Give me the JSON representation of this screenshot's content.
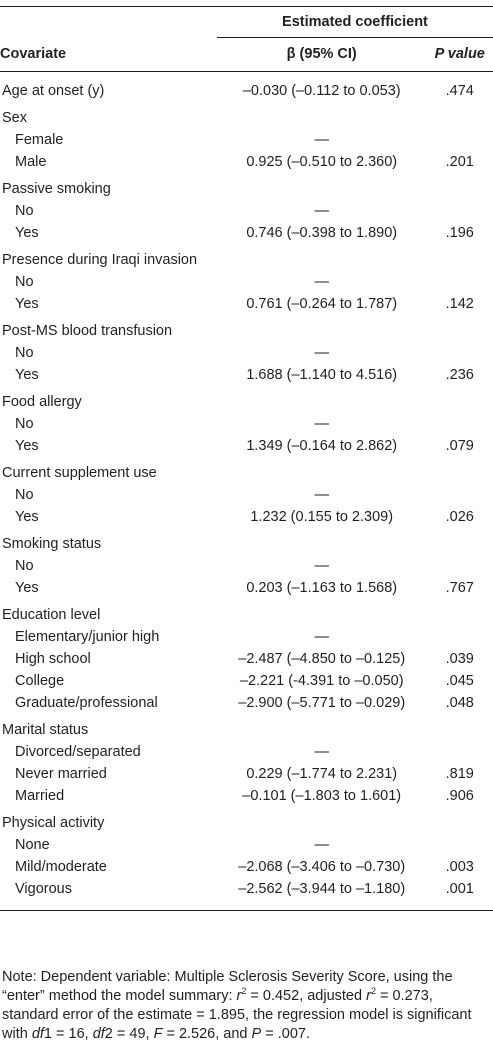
{
  "table": {
    "header": {
      "span": "Estimated coefficient",
      "columns": [
        "Covariate",
        "β (95% CI)",
        "P value"
      ]
    },
    "groups": [
      {
        "name": "Age at onset (y)",
        "ci": "–0.030 (–0.112 to 0.053)",
        "p": ".474",
        "levels": []
      },
      {
        "name": "Sex",
        "levels": [
          {
            "label": "Female",
            "ci": "—"
          },
          {
            "label": "Male",
            "ci": "0.925 (–0.510 to 2.360)",
            "p": ".201"
          }
        ]
      },
      {
        "name": "Passive smoking",
        "levels": [
          {
            "label": "No",
            "ci": "—"
          },
          {
            "label": "Yes",
            "ci": "0.746 (–0.398 to 1.890)",
            "p": ".196"
          }
        ]
      },
      {
        "name": "Presence during Iraqi invasion",
        "levels": [
          {
            "label": "No",
            "ci": "—"
          },
          {
            "label": "Yes",
            "ci": "0.761 (–0.264 to 1.787)",
            "p": ".142"
          }
        ]
      },
      {
        "name": "Post-MS blood transfusion",
        "levels": [
          {
            "label": "No",
            "ci": "—"
          },
          {
            "label": "Yes",
            "ci": "1.688 (–1.140 to 4.516)",
            "p": ".236"
          }
        ]
      },
      {
        "name": "Food allergy",
        "levels": [
          {
            "label": "No",
            "ci": "—"
          },
          {
            "label": "Yes",
            "ci": "1.349 (–0.164 to 2.862)",
            "p": ".079"
          }
        ]
      },
      {
        "name": "Current supplement use",
        "levels": [
          {
            "label": "No",
            "ci": "—"
          },
          {
            "label": "Yes",
            "ci": "1.232 (0.155 to 2.309)",
            "p": ".026"
          }
        ]
      },
      {
        "name": "Smoking status",
        "levels": [
          {
            "label": "No",
            "ci": "—"
          },
          {
            "label": "Yes",
            "ci": "0.203 (–1.163 to 1.568)",
            "p": ".767"
          }
        ]
      },
      {
        "name": "Education level",
        "levels": [
          {
            "label": "Elementary/junior high",
            "ci": "—"
          },
          {
            "label": "High school",
            "ci": "–2.487 (–4.850 to –0.125)",
            "p": ".039"
          },
          {
            "label": "College",
            "ci": "–2.221 (-4.391 to –0.050)",
            "p": ".045"
          },
          {
            "label": "Graduate/professional",
            "ci": "–2.900 (–5.771 to  –0.029)",
            "p": ".048"
          }
        ]
      },
      {
        "name": "Marital status",
        "levels": [
          {
            "label": "Divorced/separated",
            "ci": "—"
          },
          {
            "label": "Never married",
            "ci": "0.229 (–1.774 to 2.231)",
            "p": ".819"
          },
          {
            "label": "Married",
            "ci": "–0.101 (–1.803 to 1.601)",
            "p": ".906"
          }
        ]
      },
      {
        "name": "Physical activity",
        "levels": [
          {
            "label": "None",
            "ci": "—"
          },
          {
            "label": "Mild/moderate",
            "ci": "–2.068 (–3.406 to –0.730)",
            "p": ".003"
          },
          {
            "label": "Vigorous",
            "ci": "–2.562 (–3.944 to –1.180)",
            "p": ".001"
          }
        ]
      }
    ]
  },
  "note": [
    "Note: Dependent variable: Multiple Sclerosis Severity Score, using the “enter” method the model summary: ",
    "r",
    "2",
    " = 0.452, adjusted ",
    "r",
    "2",
    " = 0.273, standard error of the estimate = 1.895, the regression model is significant with ",
    "df",
    "1 = 16, ",
    "df",
    "2 = 49, ",
    "F",
    " = 2.526, and ",
    "P",
    " = .007."
  ]
}
